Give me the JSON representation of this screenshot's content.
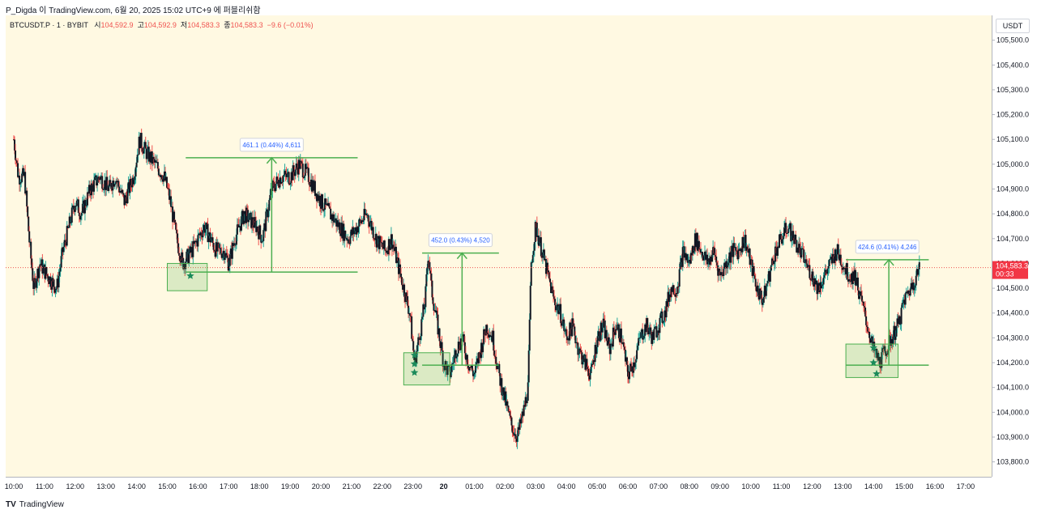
{
  "header": {
    "text": "P_Digda 이 TradingView.com, 6월 20, 2025 15:02 UTC+9 에 퍼블리쉬함"
  },
  "legend": {
    "symbol": "BTCUSDT.P · 1 · BYBIT",
    "o_label": "시",
    "o_value": "104,592.9",
    "h_label": "고",
    "h_value": "104,592.9",
    "l_label": "저",
    "l_value": "104,583.3",
    "c_label": "종",
    "c_value": "104,583.3",
    "change": "−9.6 (−0.01%)"
  },
  "footer": {
    "brand": "TradingView",
    "logo": "TV"
  },
  "colors": {
    "up": "#26a69a",
    "down": "#ef5350",
    "plot_bg": "#fff9e2",
    "drawing": "#4caf50"
  },
  "chart_data": {
    "type": "line",
    "currency": "USDT",
    "y_ticks": [
      105500,
      105400,
      105300,
      105200,
      105100,
      105000,
      104900,
      104800,
      104700,
      104600,
      104500,
      104400,
      104300,
      104200,
      104100,
      104000,
      103900,
      103800
    ],
    "y_tick_labels": [
      "105,500.0",
      "105,400.0",
      "105,300.0",
      "105,200.0",
      "105,100.0",
      "105,000.0",
      "104,900.0",
      "104,800.0",
      "104,700.0",
      "104,600.0",
      "104,500.0",
      "104,400.0",
      "104,300.0",
      "104,200.0",
      "104,100.0",
      "104,000.0",
      "103,900.0",
      "103,800.0"
    ],
    "ylim": [
      103740,
      105600
    ],
    "x_tick_labels": [
      "10:00",
      "11:00",
      "12:00",
      "13:00",
      "14:00",
      "15:00",
      "16:00",
      "17:00",
      "18:00",
      "19:00",
      "20:00",
      "21:00",
      "22:00",
      "23:00",
      "20",
      "01:00",
      "02:00",
      "03:00",
      "04:00",
      "05:00",
      "06:00",
      "07:00",
      "08:00",
      "09:00",
      "10:00",
      "11:00",
      "12:00",
      "13:00",
      "14:00",
      "15:00",
      "16:00",
      "17:00"
    ],
    "xlim": [
      0,
      31.7
    ],
    "last_price": {
      "value": 104583.3,
      "label": "104,583.3",
      "countdown": "00:33"
    },
    "price_path": [
      [
        0,
        105100
      ],
      [
        0.15,
        104950
      ],
      [
        0.35,
        104950
      ],
      [
        0.5,
        104700
      ],
      [
        0.65,
        104500
      ],
      [
        0.85,
        104600
      ],
      [
        1.1,
        104550
      ],
      [
        1.4,
        104500
      ],
      [
        1.6,
        104650
      ],
      [
        1.8,
        104750
      ],
      [
        2.0,
        104850
      ],
      [
        2.2,
        104800
      ],
      [
        2.5,
        104900
      ],
      [
        2.8,
        104950
      ],
      [
        3.1,
        104900
      ],
      [
        3.3,
        104950
      ],
      [
        3.6,
        104850
      ],
      [
        3.9,
        104950
      ],
      [
        4.1,
        105100
      ],
      [
        4.3,
        105050
      ],
      [
        4.6,
        105000
      ],
      [
        4.9,
        104950
      ],
      [
        5.1,
        104850
      ],
      [
        5.3,
        104700
      ],
      [
        5.5,
        104600
      ],
      [
        5.8,
        104650
      ],
      [
        6.0,
        104700
      ],
      [
        6.2,
        104750
      ],
      [
        6.4,
        104700
      ],
      [
        6.6,
        104650
      ],
      [
        6.85,
        104650
      ],
      [
        7.0,
        104600
      ],
      [
        7.2,
        104700
      ],
      [
        7.5,
        104800
      ],
      [
        7.9,
        104750
      ],
      [
        8.1,
        104700
      ],
      [
        8.4,
        104900
      ],
      [
        8.7,
        104950
      ],
      [
        9.0,
        104950
      ],
      [
        9.3,
        105000
      ],
      [
        9.6,
        104950
      ],
      [
        9.8,
        104900
      ],
      [
        10.0,
        104850
      ],
      [
        10.3,
        104800
      ],
      [
        10.6,
        104750
      ],
      [
        10.9,
        104700
      ],
      [
        11.2,
        104750
      ],
      [
        11.5,
        104800
      ],
      [
        11.8,
        104700
      ],
      [
        12.1,
        104650
      ],
      [
        12.3,
        104700
      ],
      [
        12.5,
        104600
      ],
      [
        12.7,
        104500
      ],
      [
        12.9,
        104400
      ],
      [
        13.05,
        104200
      ],
      [
        13.2,
        104300
      ],
      [
        13.4,
        104450
      ],
      [
        13.5,
        104650
      ],
      [
        13.6,
        104500
      ],
      [
        13.8,
        104350
      ],
      [
        14.0,
        104200
      ],
      [
        14.2,
        104150
      ],
      [
        14.4,
        104250
      ],
      [
        14.6,
        104300
      ],
      [
        14.8,
        104200
      ],
      [
        15.0,
        104150
      ],
      [
        15.2,
        104250
      ],
      [
        15.4,
        104350
      ],
      [
        15.6,
        104300
      ],
      [
        15.8,
        104150
      ],
      [
        16.0,
        104050
      ],
      [
        16.2,
        103950
      ],
      [
        16.4,
        103900
      ],
      [
        16.6,
        104000
      ],
      [
        16.75,
        104100
      ],
      [
        16.85,
        104600
      ],
      [
        17.0,
        104750
      ],
      [
        17.2,
        104650
      ],
      [
        17.4,
        104550
      ],
      [
        17.6,
        104450
      ],
      [
        17.8,
        104400
      ],
      [
        18.0,
        104300
      ],
      [
        18.2,
        104350
      ],
      [
        18.4,
        104250
      ],
      [
        18.6,
        104200
      ],
      [
        18.8,
        104150
      ],
      [
        19.0,
        104300
      ],
      [
        19.2,
        104350
      ],
      [
        19.4,
        104250
      ],
      [
        19.6,
        104350
      ],
      [
        19.8,
        104300
      ],
      [
        20.0,
        104150
      ],
      [
        20.2,
        104200
      ],
      [
        20.4,
        104300
      ],
      [
        20.6,
        104350
      ],
      [
        20.8,
        104300
      ],
      [
        21.0,
        104350
      ],
      [
        21.2,
        104400
      ],
      [
        21.4,
        104500
      ],
      [
        21.6,
        104500
      ],
      [
        21.8,
        104650
      ],
      [
        22.0,
        104600
      ],
      [
        22.2,
        104700
      ],
      [
        22.4,
        104650
      ],
      [
        22.6,
        104600
      ],
      [
        22.8,
        104650
      ],
      [
        23.0,
        104550
      ],
      [
        23.2,
        104600
      ],
      [
        23.4,
        104650
      ],
      [
        23.6,
        104650
      ],
      [
        23.8,
        104700
      ],
      [
        24.0,
        104600
      ],
      [
        24.2,
        104500
      ],
      [
        24.4,
        104450
      ],
      [
        24.6,
        104550
      ],
      [
        24.8,
        104650
      ],
      [
        25.0,
        104700
      ],
      [
        25.2,
        104750
      ],
      [
        25.4,
        104700
      ],
      [
        25.6,
        104650
      ],
      [
        25.8,
        104600
      ],
      [
        26.0,
        104550
      ],
      [
        26.2,
        104500
      ],
      [
        26.4,
        104550
      ],
      [
        26.6,
        104600
      ],
      [
        26.8,
        104650
      ],
      [
        27.0,
        104600
      ],
      [
        27.2,
        104550
      ],
      [
        27.4,
        104550
      ],
      [
        27.6,
        104450
      ],
      [
        27.8,
        104350
      ],
      [
        28.0,
        104250
      ],
      [
        28.2,
        104200
      ],
      [
        28.4,
        104250
      ],
      [
        28.6,
        104300
      ],
      [
        28.8,
        104350
      ],
      [
        29.0,
        104450
      ],
      [
        29.2,
        104500
      ],
      [
        29.4,
        104550
      ],
      [
        29.5,
        104583.3
      ]
    ],
    "zones": [
      {
        "t0": 5.0,
        "t1": 6.3,
        "p0": 104490,
        "p1": 104600
      },
      {
        "t0": 12.7,
        "t1": 14.2,
        "p0": 104110,
        "p1": 104240
      },
      {
        "t0": 27.1,
        "t1": 28.8,
        "p0": 104140,
        "p1": 104275
      }
    ],
    "annotations": [
      {
        "label": "461.1 (0.44%) 4,611",
        "t0": 5.6,
        "t1": 11.2,
        "base": 104565,
        "top": 105026,
        "arrow_t": 8.4
      },
      {
        "label": "452.0 (0.43%) 4,520",
        "t0": 13.3,
        "t1": 15.8,
        "base": 104190,
        "top": 104642,
        "arrow_t": 14.6
      },
      {
        "label": "424.6 (0.41%) 4,246",
        "t0": 27.1,
        "t1": 29.8,
        "base": 104190,
        "top": 104615,
        "arrow_t": 28.5
      }
    ],
    "markers": [
      {
        "t": 5.75,
        "p": 104550
      },
      {
        "t": 13.05,
        "p": 104230
      },
      {
        "t": 13.05,
        "p": 104195
      },
      {
        "t": 13.05,
        "p": 104160
      },
      {
        "t": 28.0,
        "p": 104260
      },
      {
        "t": 28.0,
        "p": 104200
      },
      {
        "t": 28.1,
        "p": 104155
      }
    ]
  }
}
